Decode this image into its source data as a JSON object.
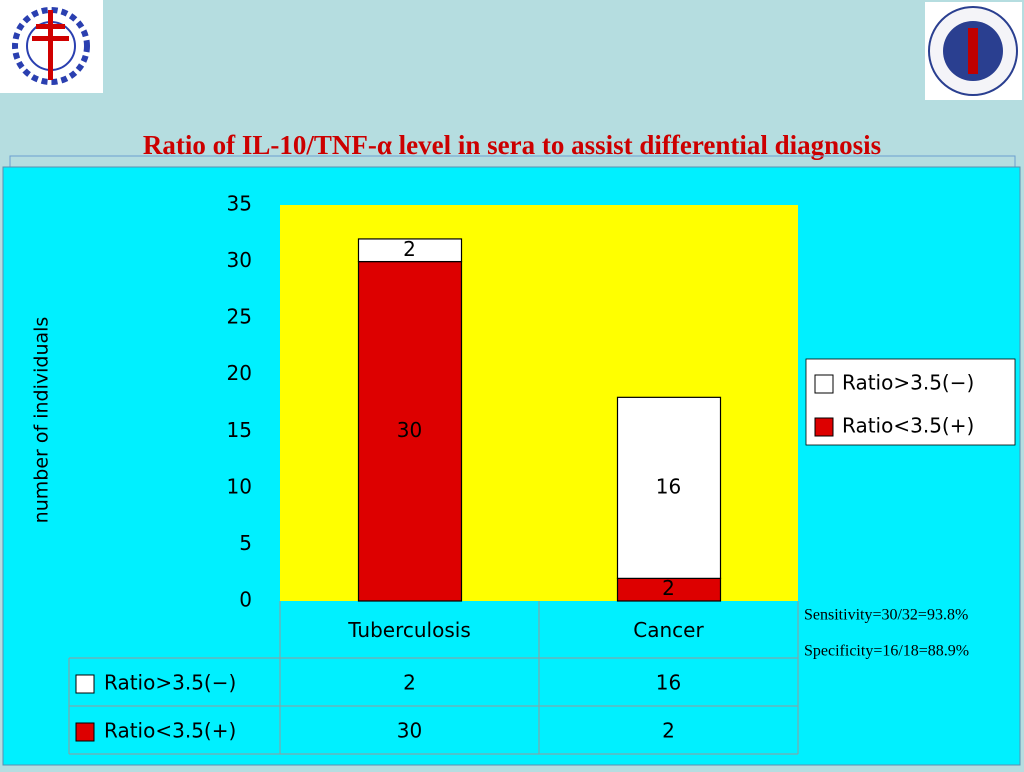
{
  "chart_data": {
    "type": "stacked-bar",
    "title": "Ratio of IL-10/TNF-α level in sera to assist differential diagnosis",
    "y_label": "number of individuals",
    "categories": [
      "Tuberculosis",
      "Cancer"
    ],
    "series": [
      {
        "name": "Ratio>3.5(−)",
        "color": "#ffffff",
        "values": [
          2,
          16
        ]
      },
      {
        "name": "Ratio<3.5(+)",
        "color": "#dd0000",
        "values": [
          30,
          2
        ]
      }
    ],
    "ylim": [
      0,
      35
    ],
    "yticks": [
      0,
      5,
      10,
      15,
      20,
      25,
      30,
      35
    ],
    "grid": false,
    "legend": "right",
    "plot_background": "#ffff00",
    "data_table": true,
    "annotations": [
      "Sensitivity=30/32=93.8%",
      "Specificity=16/18=88.9%"
    ]
  }
}
